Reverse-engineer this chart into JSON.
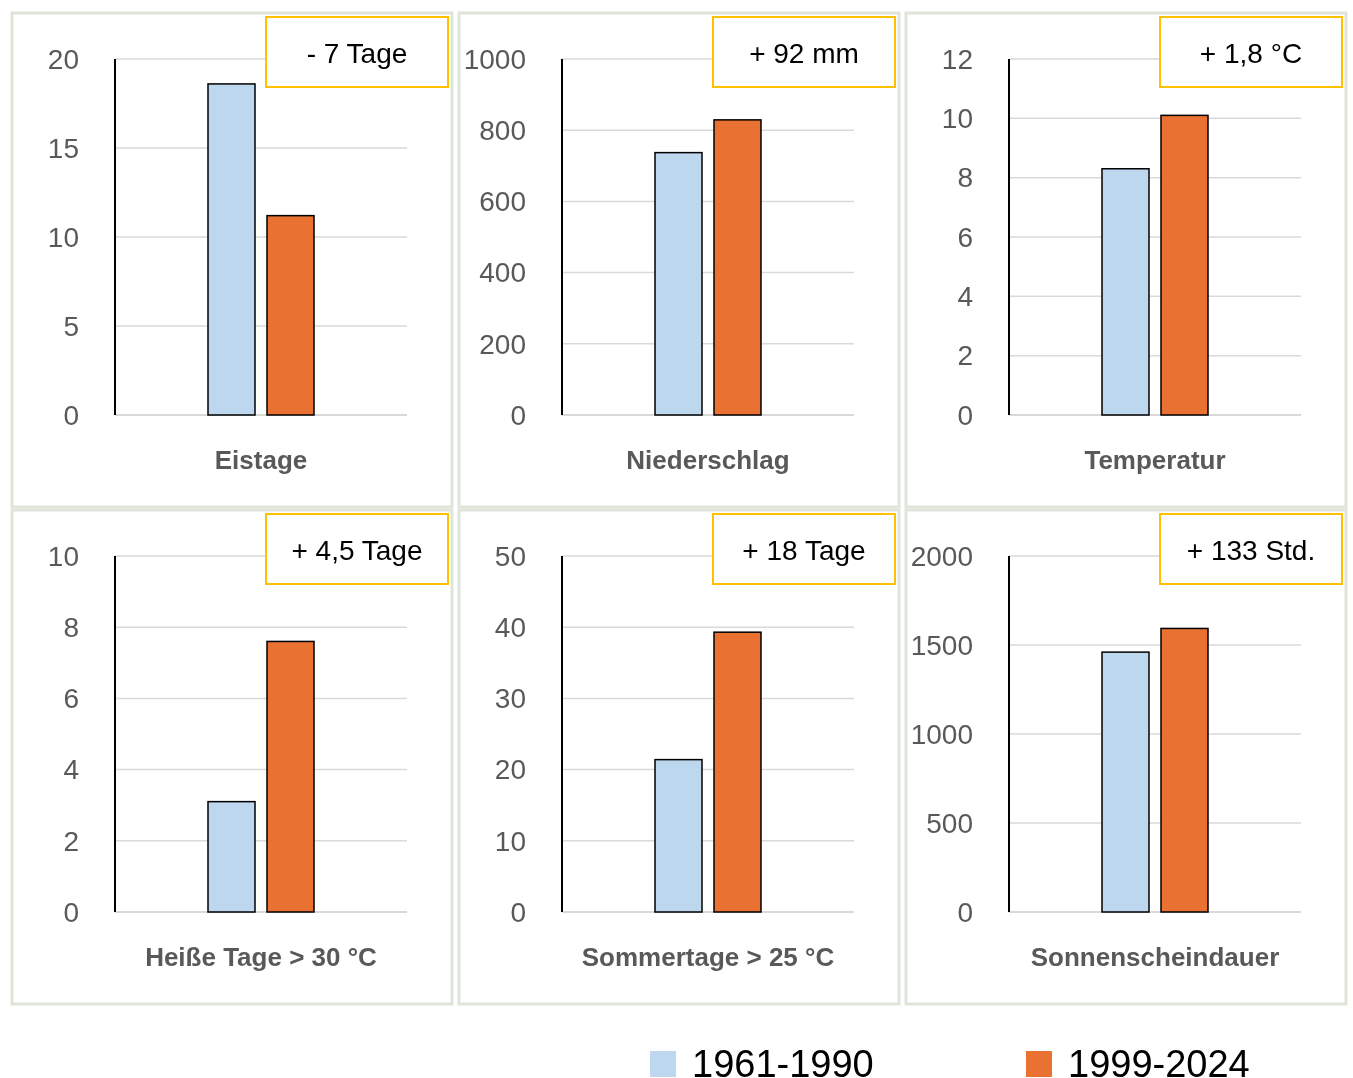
{
  "chart_data": [
    {
      "type": "bar",
      "categories": [
        "Eistage"
      ],
      "ylim": [
        0,
        20
      ],
      "yticks": [
        0,
        5,
        10,
        15,
        20
      ],
      "grid": "y",
      "legend": "bottom",
      "annotations": [
        "- 7 Tage"
      ],
      "series": [
        {
          "name": "1961-1990",
          "color": "#bdd7ee",
          "values": [
            18.6
          ]
        },
        {
          "name": "1999-2024",
          "color": "#e97132",
          "values": [
            11.2
          ]
        }
      ]
    },
    {
      "type": "bar",
      "categories": [
        "Niederschlag"
      ],
      "ylim": [
        0,
        1000
      ],
      "yticks": [
        0,
        200,
        400,
        600,
        800,
        1000
      ],
      "grid": "y",
      "legend": "bottom",
      "annotations": [
        "+ 92 mm"
      ],
      "series": [
        {
          "name": "1961-1990",
          "color": "#bdd7ee",
          "values": [
            737
          ]
        },
        {
          "name": "1999-2024",
          "color": "#e97132",
          "values": [
            829
          ]
        }
      ]
    },
    {
      "type": "bar",
      "categories": [
        "Temperatur"
      ],
      "ylim": [
        0,
        12
      ],
      "yticks": [
        0,
        2,
        4,
        6,
        8,
        10,
        12
      ],
      "grid": "y",
      "legend": "bottom",
      "annotations": [
        "+ 1,8 °C"
      ],
      "series": [
        {
          "name": "1961-1990",
          "color": "#bdd7ee",
          "values": [
            8.3
          ]
        },
        {
          "name": "1999-2024",
          "color": "#e97132",
          "values": [
            10.1
          ]
        }
      ]
    },
    {
      "type": "bar",
      "categories": [
        "Heiße Tage > 30 °C"
      ],
      "ylim": [
        0,
        10
      ],
      "yticks": [
        0,
        2,
        4,
        6,
        8,
        10
      ],
      "grid": "y",
      "legend": "bottom",
      "annotations": [
        "+ 4,5 Tage"
      ],
      "series": [
        {
          "name": "1961-1990",
          "color": "#bdd7ee",
          "values": [
            3.1
          ]
        },
        {
          "name": "1999-2024",
          "color": "#e97132",
          "values": [
            7.6
          ]
        }
      ]
    },
    {
      "type": "bar",
      "categories": [
        "Sommertage > 25 °C"
      ],
      "ylim": [
        0,
        50
      ],
      "yticks": [
        0,
        10,
        20,
        30,
        40,
        50
      ],
      "grid": "y",
      "legend": "bottom",
      "annotations": [
        "+ 18 Tage"
      ],
      "series": [
        {
          "name": "1961-1990",
          "color": "#bdd7ee",
          "values": [
            21.4
          ]
        },
        {
          "name": "1999-2024",
          "color": "#e97132",
          "values": [
            39.3
          ]
        }
      ]
    },
    {
      "type": "bar",
      "categories": [
        "Sonnenscheindauer"
      ],
      "ylim": [
        0,
        2000
      ],
      "yticks": [
        0,
        500,
        1000,
        1500,
        2000
      ],
      "grid": "y",
      "legend": "bottom",
      "annotations": [
        "+ 133 Std."
      ],
      "series": [
        {
          "name": "1961-1990",
          "color": "#bdd7ee",
          "values": [
            1460
          ]
        },
        {
          "name": "1999-2024",
          "color": "#e97132",
          "values": [
            1593
          ]
        }
      ]
    }
  ]
}
